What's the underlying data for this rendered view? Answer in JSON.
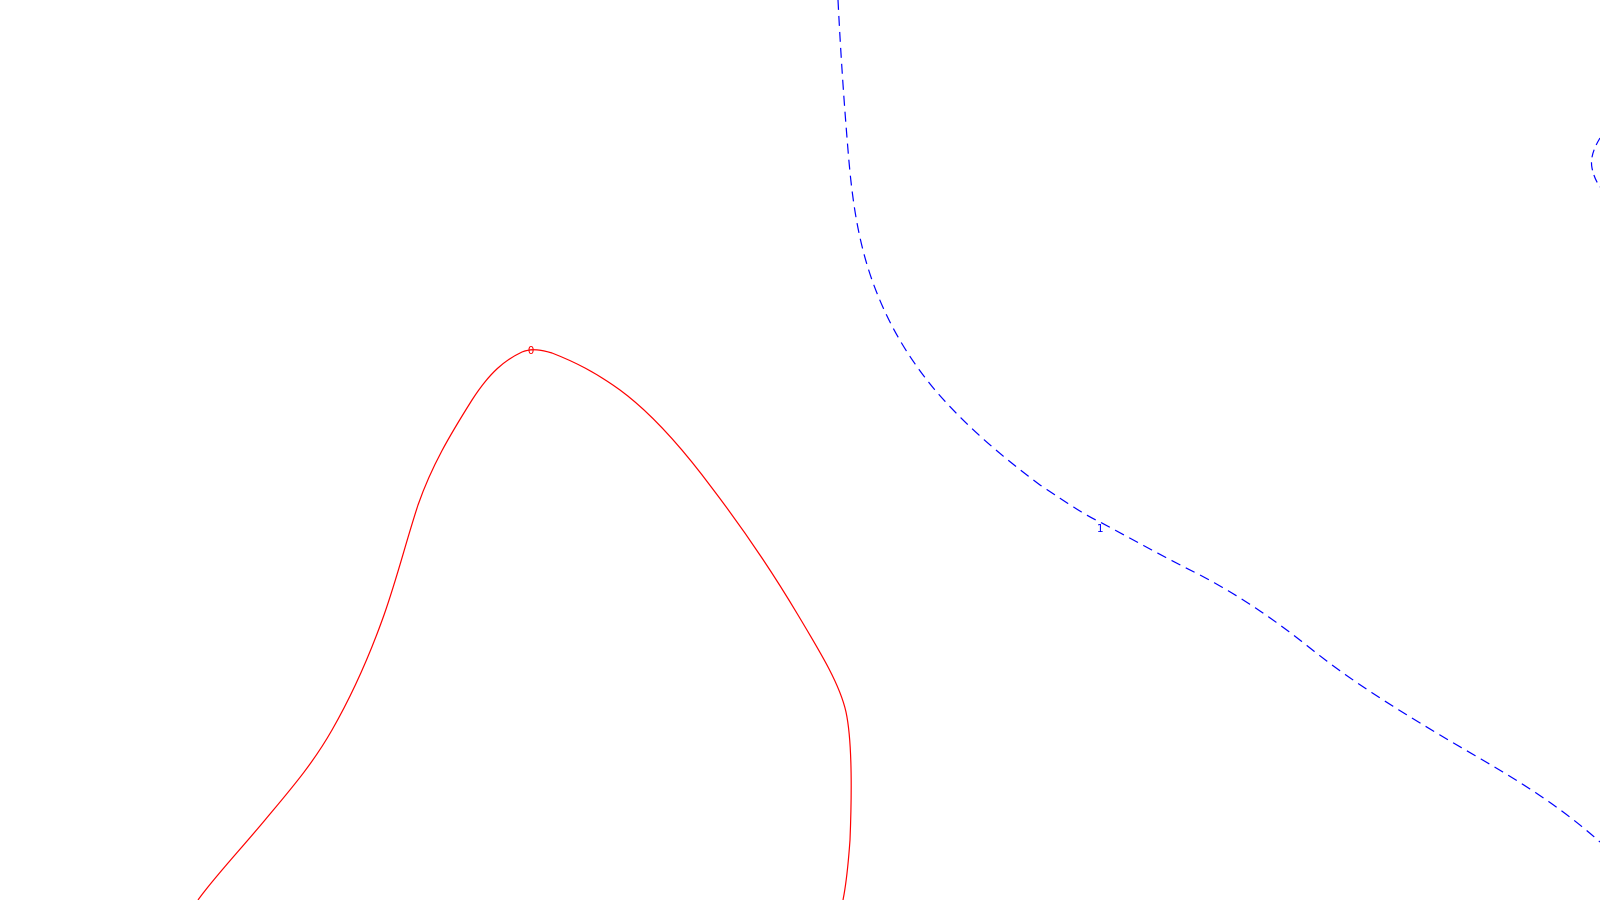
{
  "chart_data": {
    "type": "contour",
    "title": "",
    "xlabel": "",
    "ylabel": "",
    "grid": false,
    "legend": "none",
    "contours": [
      {
        "level": "0",
        "color": "#ff0000",
        "style": "solid"
      },
      {
        "level": "1",
        "color": "#0000ff",
        "style": "dashed"
      },
      {
        "level": "",
        "color": "#0000ff",
        "style": "dashed"
      }
    ]
  }
}
